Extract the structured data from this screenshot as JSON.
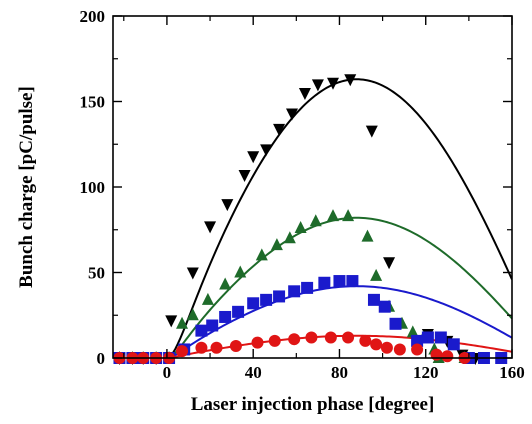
{
  "chart_data": {
    "type": "scatter",
    "xlabel": "Laser injection phase [degree]",
    "ylabel": "Bunch charge [pC/pulse]",
    "xlim": [
      -25,
      160
    ],
    "ylim": [
      0,
      200
    ],
    "xticks": [
      0,
      40,
      80,
      120,
      160
    ],
    "yticks": [
      0,
      50,
      100,
      150,
      200
    ],
    "tick_labels_x": [
      "0",
      "40",
      "80",
      "120",
      "160"
    ],
    "tick_labels_y": [
      "0",
      "50",
      "100",
      "150",
      "200"
    ],
    "grid": false,
    "legend": "none",
    "series": [
      {
        "marker": "triangle-down",
        "color": "#000000",
        "points": [
          [
            -22,
            0
          ],
          [
            -16,
            0
          ],
          [
            -11,
            0
          ],
          [
            -5,
            0
          ],
          [
            2,
            22
          ],
          [
            12,
            50
          ],
          [
            20,
            77
          ],
          [
            28,
            90
          ],
          [
            36,
            107
          ],
          [
            40,
            118
          ],
          [
            46,
            122
          ],
          [
            52,
            134
          ],
          [
            58,
            143
          ],
          [
            64,
            155
          ],
          [
            70,
            160
          ],
          [
            77,
            161
          ],
          [
            85,
            163
          ],
          [
            95,
            133
          ],
          [
            103,
            56
          ],
          [
            121,
            14
          ],
          [
            130,
            10
          ],
          [
            137,
            2
          ],
          [
            143,
            0
          ]
        ]
      },
      {
        "marker": "triangle-up",
        "color": "#1e6b2a",
        "points": [
          [
            -22,
            0
          ],
          [
            -16,
            0
          ],
          [
            -11,
            0
          ],
          [
            -5,
            0
          ],
          [
            1,
            0
          ],
          [
            7,
            20
          ],
          [
            12,
            25
          ],
          [
            19,
            34
          ],
          [
            27,
            43
          ],
          [
            34,
            50
          ],
          [
            44,
            60
          ],
          [
            51,
            66
          ],
          [
            57,
            70
          ],
          [
            62,
            76
          ],
          [
            69,
            80
          ],
          [
            77,
            83
          ],
          [
            84,
            83
          ],
          [
            93,
            71
          ],
          [
            97,
            48
          ],
          [
            103,
            30
          ],
          [
            109,
            20
          ],
          [
            114,
            15
          ],
          [
            119,
            12
          ],
          [
            124,
            5
          ],
          [
            126,
            0
          ],
          [
            138,
            0
          ]
        ]
      },
      {
        "marker": "square",
        "color": "#1a1acc",
        "points": [
          [
            -22,
            0
          ],
          [
            -16,
            0
          ],
          [
            -11,
            0
          ],
          [
            -5,
            0
          ],
          [
            1,
            0
          ],
          [
            8,
            5
          ],
          [
            16,
            16
          ],
          [
            21,
            19
          ],
          [
            27,
            24
          ],
          [
            33,
            27
          ],
          [
            40,
            32
          ],
          [
            46,
            34
          ],
          [
            52,
            36
          ],
          [
            59,
            39
          ],
          [
            65,
            41
          ],
          [
            73,
            44
          ],
          [
            80,
            45
          ],
          [
            86,
            45
          ],
          [
            96,
            34
          ],
          [
            101,
            30
          ],
          [
            106,
            20
          ],
          [
            116,
            10
          ],
          [
            121,
            12
          ],
          [
            127,
            12
          ],
          [
            133,
            8
          ],
          [
            140,
            0
          ],
          [
            147,
            0
          ],
          [
            155,
            0
          ]
        ]
      },
      {
        "marker": "circle",
        "color": "#e01515",
        "points": [
          [
            -22,
            0
          ],
          [
            -16,
            0
          ],
          [
            -11,
            0
          ],
          [
            -5,
            0
          ],
          [
            1,
            0
          ],
          [
            7,
            4
          ],
          [
            16,
            6
          ],
          [
            23,
            6
          ],
          [
            32,
            7
          ],
          [
            42,
            9
          ],
          [
            50,
            10
          ],
          [
            59,
            11
          ],
          [
            67,
            12
          ],
          [
            76,
            12
          ],
          [
            84,
            12
          ],
          [
            92,
            10
          ],
          [
            97,
            8
          ],
          [
            102,
            6
          ],
          [
            108,
            5
          ],
          [
            116,
            5
          ],
          [
            125,
            2
          ],
          [
            130,
            1
          ],
          [
            138,
            0
          ]
        ]
      }
    ],
    "fits": [
      {
        "color": "#000000",
        "x0": 0,
        "x1": 160,
        "peak_x": 88,
        "peak_y": 163,
        "rise": 1.5
      },
      {
        "color": "#1e6b2a",
        "x0": 0,
        "x1": 160,
        "peak_x": 88,
        "peak_y": 82,
        "rise": 1.2
      },
      {
        "color": "#1a1acc",
        "x0": 0,
        "x1": 160,
        "peak_x": 88,
        "peak_y": 42,
        "rise": 1.0
      },
      {
        "color": "#e01515",
        "x0": 0,
        "x1": 160,
        "peak_x": 88,
        "peak_y": 13,
        "rise": 0.6
      }
    ]
  }
}
